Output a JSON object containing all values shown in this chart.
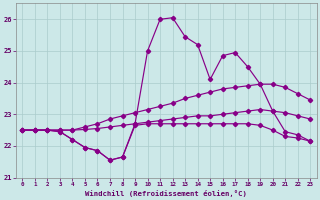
{
  "x_values": [
    0,
    1,
    2,
    3,
    4,
    5,
    6,
    7,
    8,
    9,
    10,
    11,
    12,
    13,
    14,
    15,
    16,
    17,
    18,
    19,
    20,
    21,
    22,
    23
  ],
  "line_peak": [
    22.5,
    22.5,
    22.5,
    22.45,
    22.2,
    21.95,
    21.85,
    21.55,
    21.65,
    22.7,
    25.0,
    26.0,
    26.05,
    25.45,
    25.2,
    24.1,
    24.85,
    24.95,
    24.5,
    23.95,
    23.1,
    22.45,
    22.35,
    22.15
  ],
  "line_diag_high": [
    22.5,
    22.5,
    22.5,
    22.5,
    22.5,
    22.6,
    22.7,
    22.85,
    22.95,
    23.05,
    23.15,
    23.25,
    23.35,
    23.5,
    23.6,
    23.7,
    23.8,
    23.85,
    23.9,
    23.95,
    23.95,
    23.85,
    23.65,
    23.45
  ],
  "line_diag_low": [
    22.5,
    22.5,
    22.5,
    22.5,
    22.5,
    22.52,
    22.55,
    22.6,
    22.65,
    22.7,
    22.75,
    22.8,
    22.85,
    22.9,
    22.95,
    22.95,
    23.0,
    23.05,
    23.1,
    23.15,
    23.1,
    23.05,
    22.95,
    22.85
  ],
  "line_bottom": [
    22.5,
    22.5,
    22.5,
    22.45,
    22.2,
    21.95,
    21.85,
    21.55,
    21.65,
    22.65,
    22.7,
    22.7,
    22.7,
    22.7,
    22.7,
    22.7,
    22.7,
    22.7,
    22.7,
    22.65,
    22.5,
    22.3,
    22.25,
    22.15
  ],
  "bg_color": "#cce8e8",
  "line_color": "#880088",
  "grid_color": "#aacccc",
  "axis_color": "#888888",
  "text_color": "#660066",
  "xlabel": "Windchill (Refroidissement éolien,°C)",
  "ylim": [
    21.0,
    26.5
  ],
  "xlim": [
    -0.5,
    23.5
  ],
  "yticks": [
    21,
    22,
    23,
    24,
    25,
    26
  ],
  "xticks": [
    0,
    1,
    2,
    3,
    4,
    5,
    6,
    7,
    8,
    9,
    10,
    11,
    12,
    13,
    14,
    15,
    16,
    17,
    18,
    19,
    20,
    21,
    22,
    23
  ]
}
